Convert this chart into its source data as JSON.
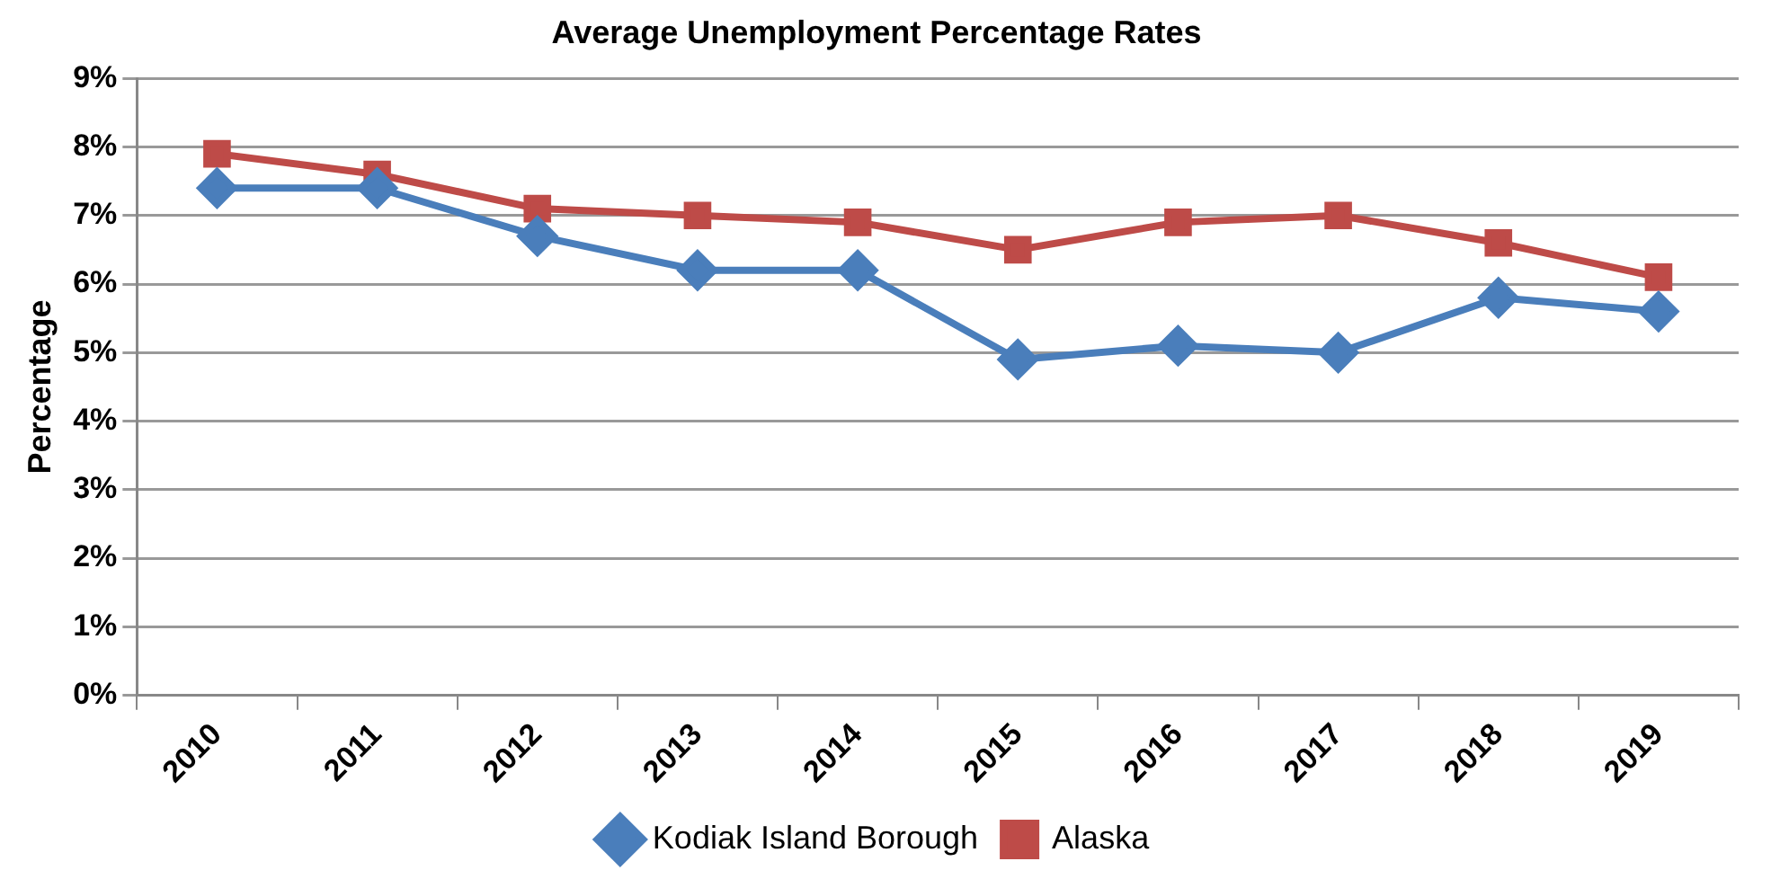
{
  "chart_data": {
    "type": "line",
    "title": "Average Unemployment Percentage Rates",
    "ylabel": "Percentage",
    "categories": [
      "2010",
      "2011",
      "2012",
      "2013",
      "2014",
      "2015",
      "2016",
      "2017",
      "2018",
      "2019"
    ],
    "series": [
      {
        "name": "Kodiak Island Borough",
        "color": "#4a7ebb",
        "marker": "diamond",
        "values": [
          7.4,
          7.4,
          6.7,
          6.2,
          6.2,
          4.9,
          5.1,
          5.0,
          5.8,
          5.6
        ]
      },
      {
        "name": "Alaska",
        "color": "#be4b48",
        "marker": "square",
        "values": [
          7.9,
          7.6,
          7.1,
          7.0,
          6.9,
          6.5,
          6.9,
          7.0,
          6.6,
          6.1
        ]
      }
    ],
    "ylim": [
      0,
      9
    ],
    "yticks": [
      {
        "value": 0,
        "label": "0%"
      },
      {
        "value": 1,
        "label": "1%"
      },
      {
        "value": 2,
        "label": "2%"
      },
      {
        "value": 3,
        "label": "3%"
      },
      {
        "value": 4,
        "label": "4%"
      },
      {
        "value": 5,
        "label": "5%"
      },
      {
        "value": 6,
        "label": "6%"
      },
      {
        "value": 7,
        "label": "7%"
      },
      {
        "value": 8,
        "label": "8%"
      },
      {
        "value": 9,
        "label": "9%"
      }
    ],
    "grid": "y",
    "legend": "bottom"
  }
}
